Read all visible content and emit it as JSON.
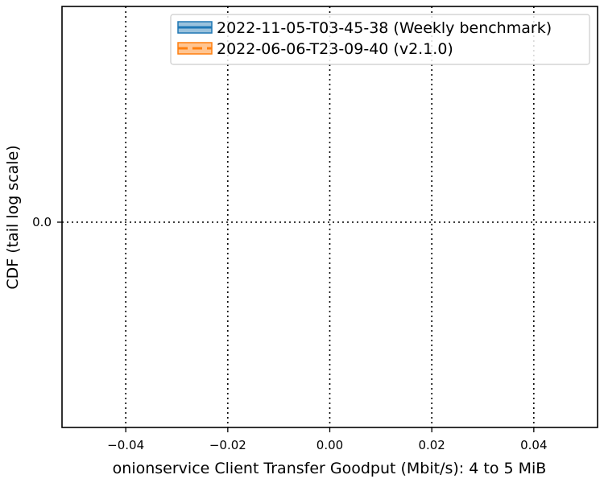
{
  "chart_data": {
    "type": "line",
    "title": "",
    "xlabel": "onionservice Client Transfer Goodput (Mbit/s): 4 to 5 MiB",
    "ylabel": "CDF (tail log scale)",
    "xlim": [
      -0.0525,
      0.0525
    ],
    "x_ticks": [
      -0.04,
      -0.02,
      0.0,
      0.02,
      0.04
    ],
    "x_tick_labels": [
      "−0.04",
      "−0.02",
      "0.00",
      "0.02",
      "0.04"
    ],
    "y_ticks": [
      0.0
    ],
    "y_tick_labels": [
      "0.0"
    ],
    "grid": true,
    "legend_position": "top-right",
    "series": [
      {
        "name": "2022-11-05-T03-45-38 (Weekly benchmark)",
        "color": "#1f77b4",
        "linestyle": "solid",
        "x": [],
        "y": []
      },
      {
        "name": "2022-06-06-T23-09-40 (v2.1.0)",
        "color": "#ff7f0e",
        "linestyle": "dashed",
        "x": [],
        "y": []
      }
    ]
  }
}
